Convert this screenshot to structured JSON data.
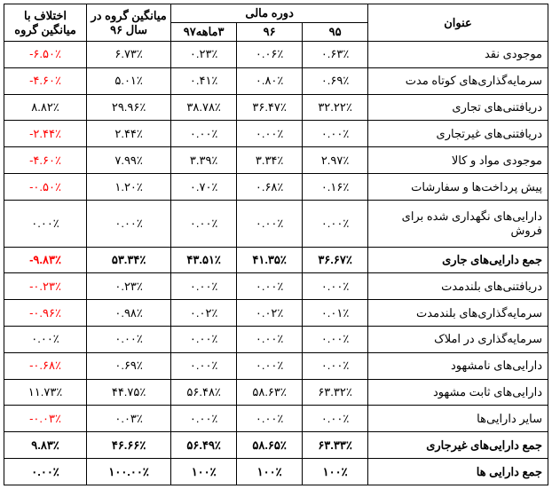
{
  "headers": {
    "title": "عنوان",
    "period": "دوره مالی",
    "avg": "میانگین گروه در سال ۹۶",
    "diff": "اختلاف با میانگین گروه",
    "y95": "۹۵",
    "y96": "۹۶",
    "y97": "۳ماهه۹۷"
  },
  "rows": [
    {
      "title": "موجودی نقد",
      "v95": "٠.۶٣٪",
      "v96": "٠.٠۶٪",
      "v97": "٠.٢٣٪",
      "avg": "۶.٧٣٪",
      "diff": "-۶.۵٠٪",
      "neg": true,
      "bold": false
    },
    {
      "title": "سرمایه‌گذاری‌های کوتاه مدت",
      "v95": "٠.۶٩٪",
      "v96": "٠.٨٠٪",
      "v97": "٠.۴١٪",
      "avg": "۵.٠١٪",
      "diff": "-۴.۶٠٪",
      "neg": true,
      "bold": false
    },
    {
      "title": "دریافتنی‌های تجاری",
      "v95": "٣٢.٢٢٪",
      "v96": "٣۶.۴٧٪",
      "v97": "٣٨.٧٨٪",
      "avg": "٢٩.٩۶٪",
      "diff": "٨.٨٢٪",
      "neg": false,
      "bold": false
    },
    {
      "title": "دریافتنی‌های غیرتجاری",
      "v95": "٠.٠٠٪",
      "v96": "٠.٠٠٪",
      "v97": "٠.٠٠٪",
      "avg": "٢.۴۴٪",
      "diff": "-٢.۴۴٪",
      "neg": true,
      "bold": false
    },
    {
      "title": "موجودی مواد و کالا",
      "v95": "٢.٩٧٪",
      "v96": "٣.٣۴٪",
      "v97": "٣.٣٩٪",
      "avg": "٧.٩٩٪",
      "diff": "-۴.۶٠٪",
      "neg": true,
      "bold": false
    },
    {
      "title": "پیش پرداخت‌ها و سفارشات",
      "v95": "٠.١۶٪",
      "v96": "٠.۶٨٪",
      "v97": "٠.٧٠٪",
      "avg": "١.٢٠٪",
      "diff": "-٠.۵٠٪",
      "neg": true,
      "bold": false
    },
    {
      "title": "دارایی‌های نگهداری شده برای فروش",
      "v95": "٠.٠٠٪",
      "v96": "٠.٠٠٪",
      "v97": "٠.٠٠٪",
      "avg": "٠.٠٠٪",
      "diff": "٠.٠٠٪",
      "neg": false,
      "bold": false
    },
    {
      "title": "جمع دارایی‌های جاری",
      "v95": "٣۶.۶٧٪",
      "v96": "۴١.٣۵٪",
      "v97": "۴٣.۵١٪",
      "avg": "۵٣.٣۴٪",
      "diff": "-٩.٨٣٪",
      "neg": true,
      "bold": true
    },
    {
      "title": "دریافتنی‌های بلندمدت",
      "v95": "٠.٠٠٪",
      "v96": "٠.٠٠٪",
      "v97": "٠.٠٠٪",
      "avg": "٠.٢٣٪",
      "diff": "-٠.٢٣٪",
      "neg": true,
      "bold": false
    },
    {
      "title": "سرمایه‌گذاری‌های بلندمدت",
      "v95": "٠.٠١٪",
      "v96": "٠.٠٢٪",
      "v97": "٠.٠٢٪",
      "avg": "٠.٩٨٪",
      "diff": "-٠.٩۶٪",
      "neg": true,
      "bold": false
    },
    {
      "title": "سرمایه‌گذاری در املاک",
      "v95": "٠.٠٠٪",
      "v96": "٠.٠٠٪",
      "v97": "٠.٠٠٪",
      "avg": "٠.٠٠٪",
      "diff": "٠.٠٠٪",
      "neg": false,
      "bold": false
    },
    {
      "title": "دارایی‌های نامشهود",
      "v95": "٠.٠٠٪",
      "v96": "٠.٠٠٪",
      "v97": "٠.٠٠٪",
      "avg": "٠.۶٩٪",
      "diff": "-٠.۶٨٪",
      "neg": true,
      "bold": false
    },
    {
      "title": "دارایی‌های ثابت مشهود",
      "v95": "۶٣.٣٢٪",
      "v96": "۵٨.۶٣٪",
      "v97": "۵۶.۴٨٪",
      "avg": "۴۴.٧۵٪",
      "diff": "١١.٧٣٪",
      "neg": false,
      "bold": false
    },
    {
      "title": "سایر دارایی‌ها",
      "v95": "٠.٠٠٪",
      "v96": "٠.٠٠٪",
      "v97": "٠.٠٠٪",
      "avg": "٠.٠٣٪",
      "diff": "-٠.٠٣٪",
      "neg": true,
      "bold": false
    },
    {
      "title": "جمع دارایی‌های غیرجاری",
      "v95": "۶٣.٣٣٪",
      "v96": "۵٨.۶۵٪",
      "v97": "۵۶.۴٩٪",
      "avg": "۴۶.۶۶٪",
      "diff": "٩.٨٣٪",
      "neg": false,
      "bold": true
    },
    {
      "title": "جمع دارایی ها",
      "v95": "١٠٠٪",
      "v96": "١٠٠٪",
      "v97": "١٠٠٪",
      "avg": "١٠٠.٠٠٪",
      "diff": "٠.٠٠٪",
      "neg": false,
      "bold": true
    }
  ]
}
